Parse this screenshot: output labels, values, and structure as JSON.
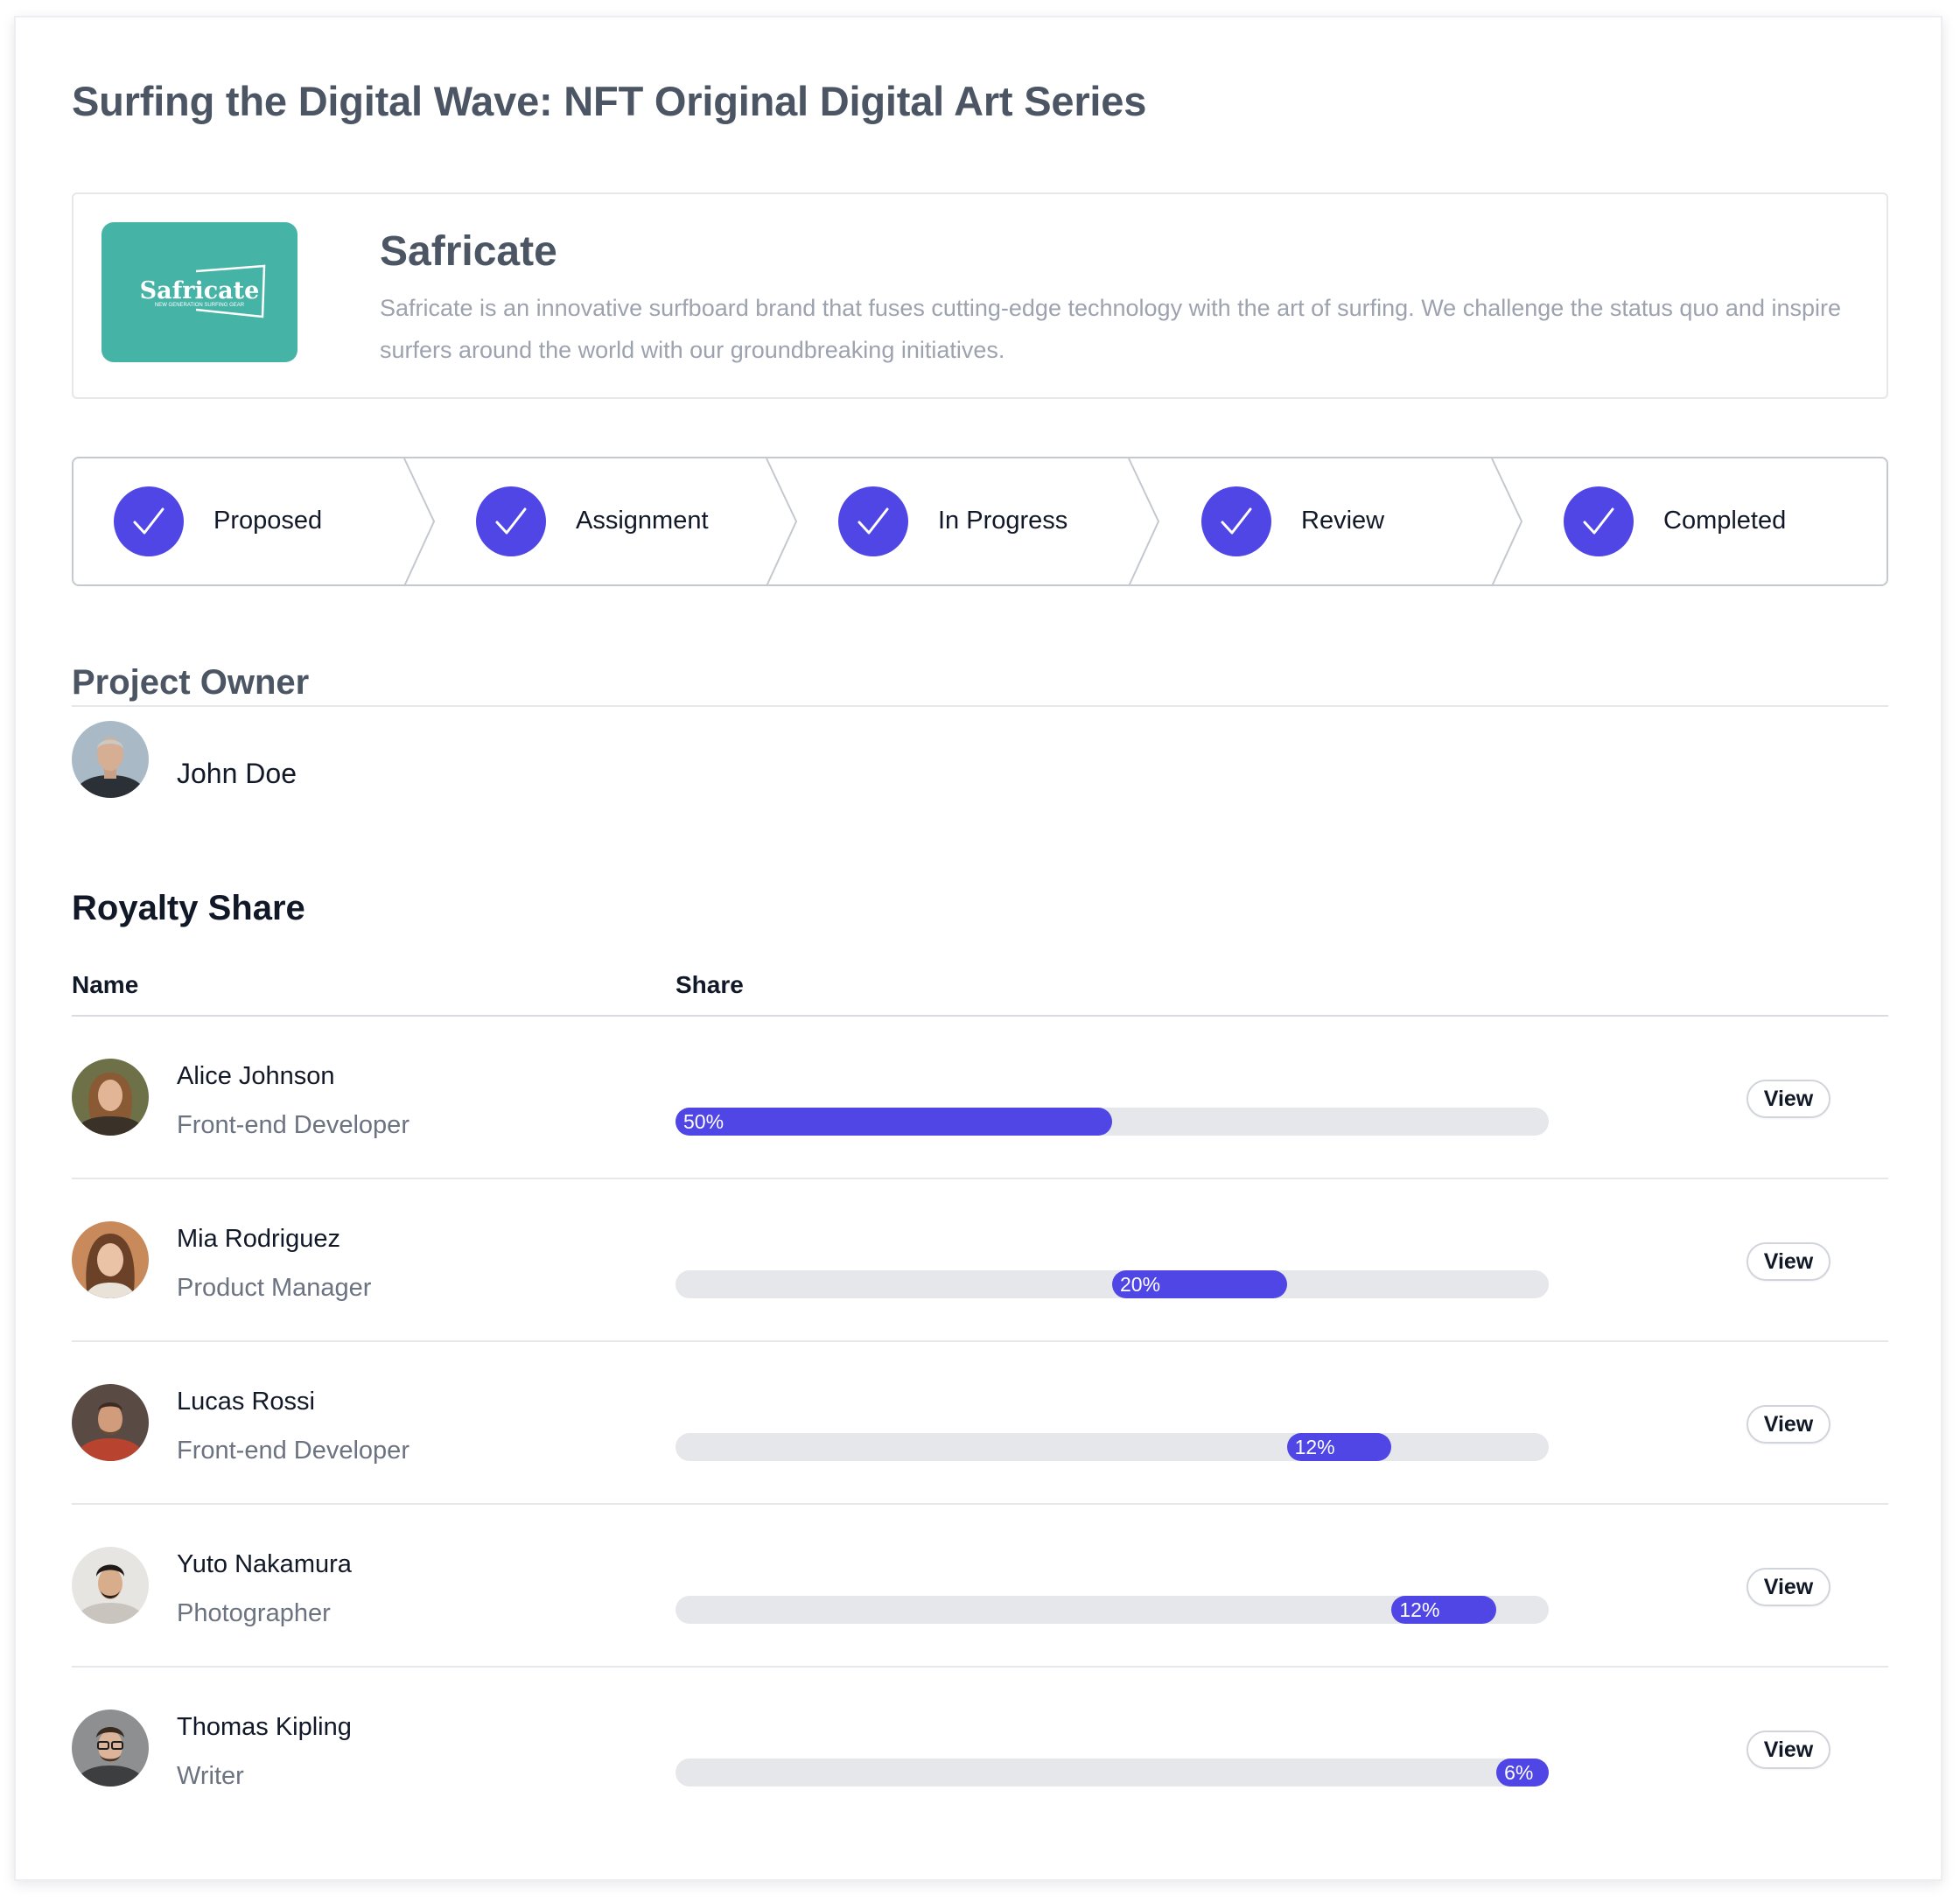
{
  "page": {
    "title": "Surfing the Digital Wave: NFT Original Digital Art Series"
  },
  "brand": {
    "name": "Safricate",
    "description": "Safricate is an innovative surfboard brand that fuses cutting-edge technology with the art of surfing. We challenge the status quo and inspire surfers around the world with our groundbreaking initiatives.",
    "logo_text": "Safricate",
    "logo_tagline": "NEW GENERATION SURFING GEAR",
    "logo_color": "#45b3a5"
  },
  "stepper": {
    "steps": [
      {
        "label": "Proposed",
        "status": "complete"
      },
      {
        "label": "Assignment",
        "status": "complete"
      },
      {
        "label": "In Progress",
        "status": "complete"
      },
      {
        "label": "Review",
        "status": "complete"
      },
      {
        "label": "Completed",
        "status": "complete"
      }
    ],
    "accent": "#4f46e5"
  },
  "owner": {
    "heading": "Project Owner",
    "name": "John Doe"
  },
  "royalty": {
    "heading": "Royalty Share",
    "col_name": "Name",
    "col_share": "Share",
    "view_label": "View",
    "rows": [
      {
        "name": "Alice Johnson",
        "role": "Front-end Developer",
        "share_label": "50%",
        "share": 50
      },
      {
        "name": "Mia Rodriguez",
        "role": "Product Manager",
        "share_label": "20%",
        "share": 20
      },
      {
        "name": "Lucas Rossi",
        "role": "Front-end Developer",
        "share_label": "12%",
        "share": 12
      },
      {
        "name": "Yuto Nakamura",
        "role": "Photographer",
        "share_label": "12%",
        "share": 12
      },
      {
        "name": "Thomas Kipling",
        "role": "Writer",
        "share_label": "6%",
        "share": 6
      }
    ]
  }
}
